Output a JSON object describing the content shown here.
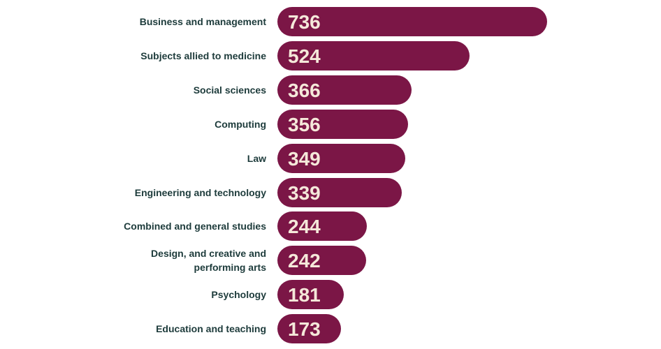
{
  "chart_data": {
    "type": "bar",
    "orientation": "horizontal",
    "categories": [
      "Business and management",
      "Subjects allied to medicine",
      "Social sciences",
      "Computing",
      "Law",
      "Engineering and technology",
      "Combined and general studies",
      "Design, and creative and performing arts",
      "Psychology",
      "Education and teaching"
    ],
    "values": [
      736,
      524,
      366,
      356,
      349,
      339,
      244,
      242,
      181,
      173
    ],
    "color": "#7b1646"
  }
}
